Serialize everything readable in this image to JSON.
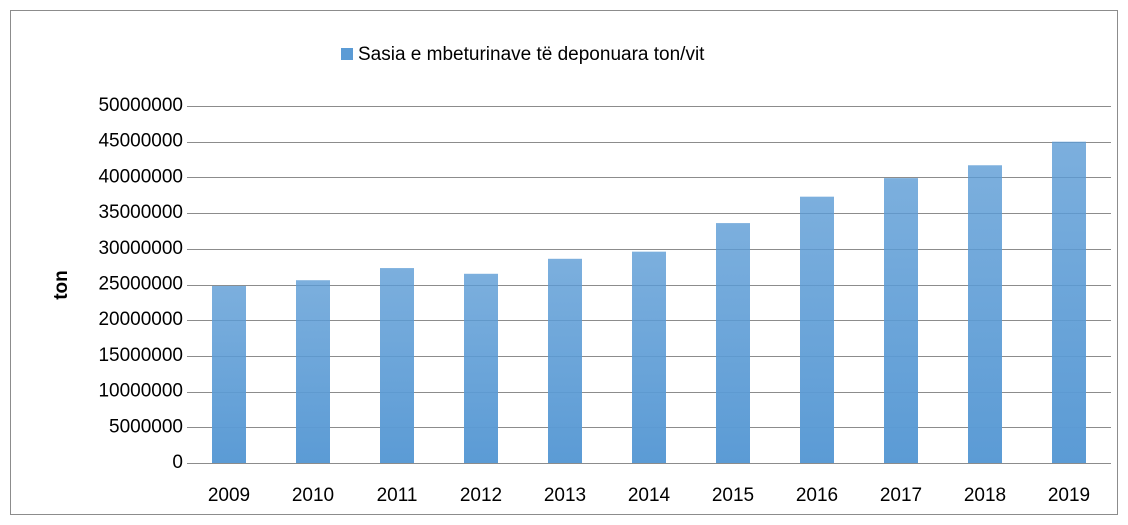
{
  "chart_data": {
    "type": "bar",
    "series": [
      {
        "name": "Sasia e mbeturinave të deponuara ton/vit",
        "color": "#5b9bd5",
        "values": [
          24800000,
          25600000,
          27300000,
          26500000,
          28600000,
          29600000,
          33600000,
          37300000,
          39900000,
          41700000,
          45000000
        ]
      }
    ],
    "categories": [
      "2009",
      "2010",
      "2011",
      "2012",
      "2013",
      "2014",
      "2015",
      "2016",
      "2017",
      "2018",
      "2019"
    ],
    "y_label": "ton",
    "ylim": [
      0,
      50000000
    ],
    "yticks": [
      0,
      5000000,
      10000000,
      15000000,
      20000000,
      25000000,
      30000000,
      35000000,
      40000000,
      45000000,
      50000000
    ],
    "grid": true,
    "legend": "top"
  }
}
